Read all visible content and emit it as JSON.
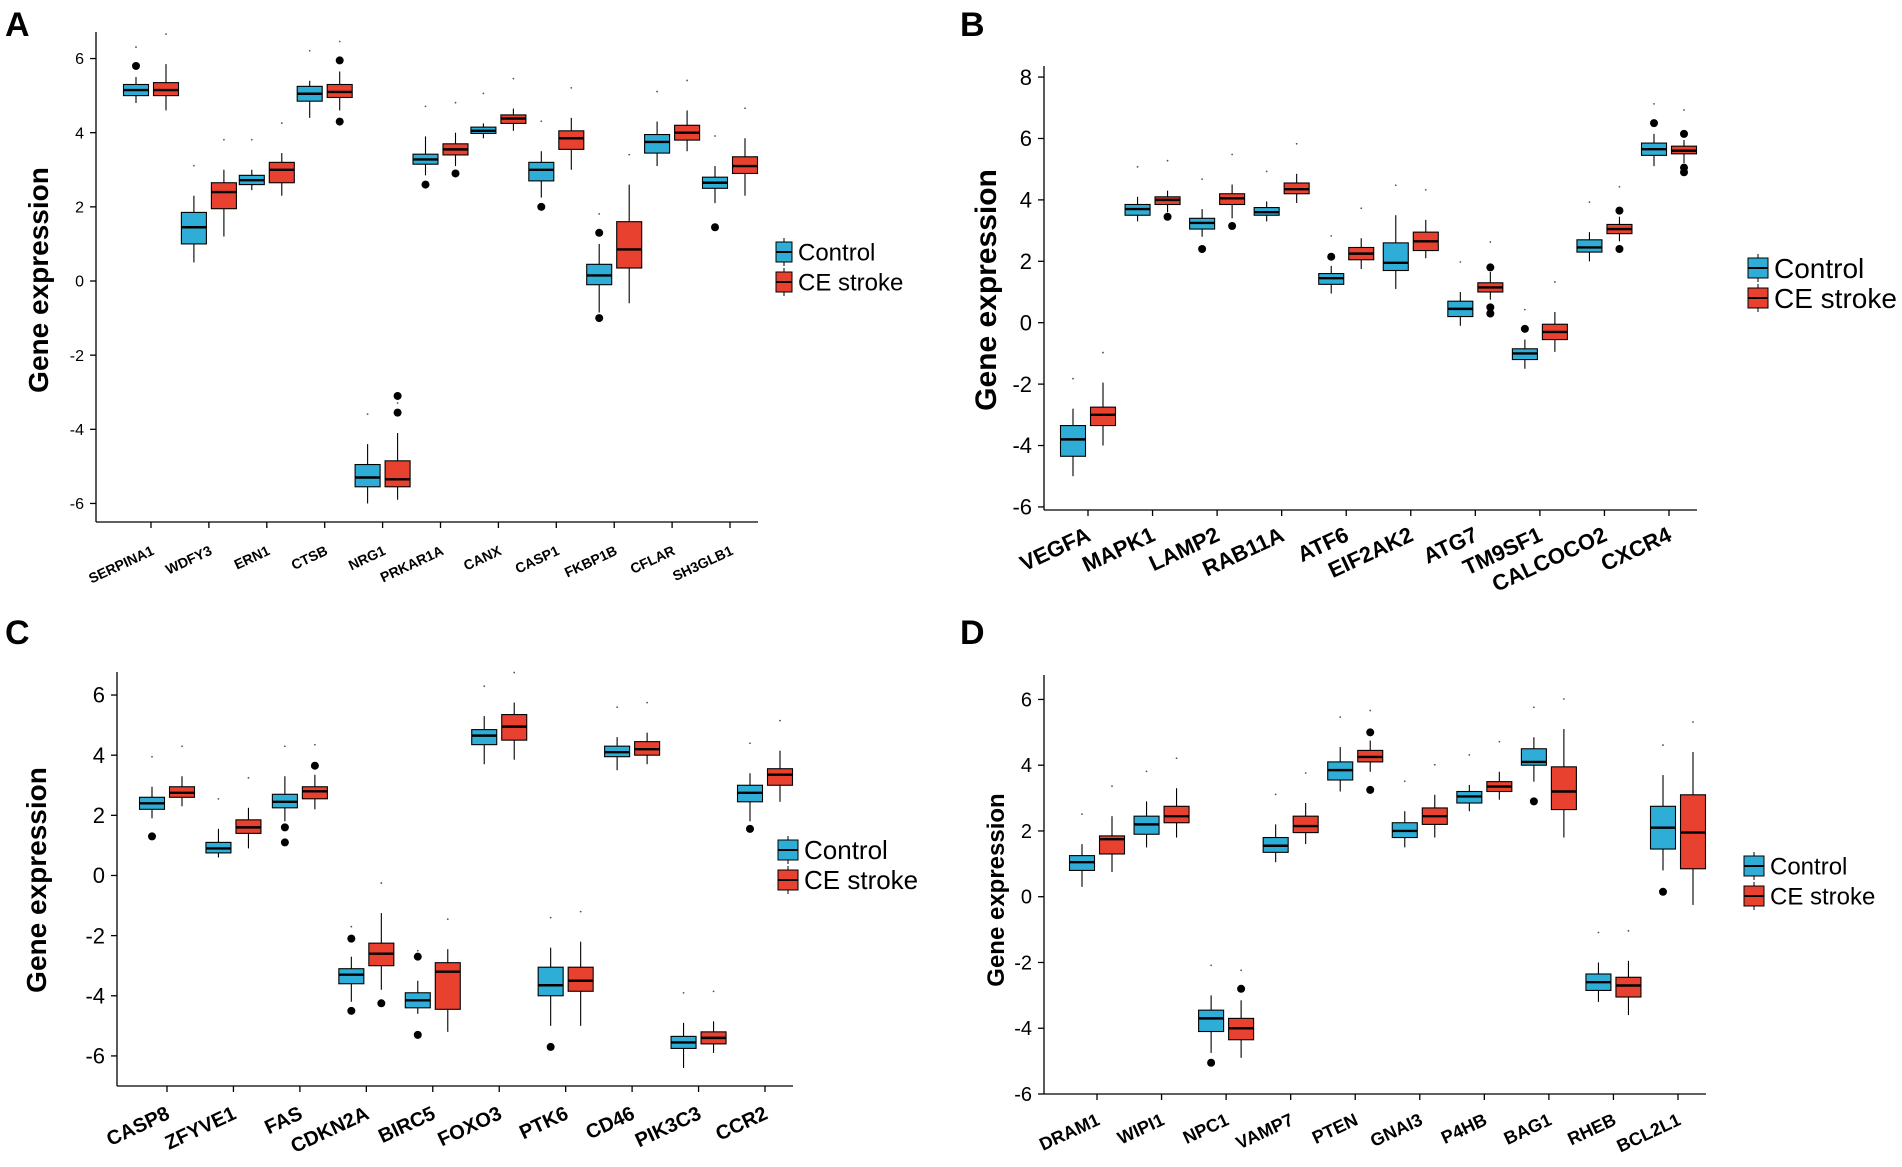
{
  "colors": {
    "control": "#2eaed6",
    "stroke": "#e8412f",
    "line": "#000000"
  },
  "legend": {
    "control_label": "Control",
    "stroke_label": "CE stroke"
  },
  "chart_data": [
    {
      "panel": "A",
      "type": "box",
      "ylabel": "Gene expression",
      "ylim": [
        -6.5,
        6.5
      ],
      "yticks": [
        6,
        4,
        2,
        0,
        -2,
        -4,
        -6
      ],
      "categories": [
        "SERPINA1",
        "WDFY3",
        "ERN1",
        "CTSB",
        "NRG1",
        "PRKAR1A",
        "CANX",
        "CASP1",
        "FKBP1B",
        "CFLAR",
        "SH3GLB1"
      ],
      "series": [
        {
          "name": "Control",
          "boxes": [
            {
              "min": 4.8,
              "q1": 5.0,
              "median": 5.15,
              "q3": 5.3,
              "max": 5.5,
              "outliers": [
                5.8
              ]
            },
            {
              "min": 0.5,
              "q1": 1.0,
              "median": 1.45,
              "q3": 1.85,
              "max": 2.3,
              "outliers": []
            },
            {
              "min": 2.45,
              "q1": 2.6,
              "median": 2.72,
              "q3": 2.85,
              "max": 3.0,
              "outliers": []
            },
            {
              "min": 4.4,
              "q1": 4.85,
              "median": 5.05,
              "q3": 5.25,
              "max": 5.4,
              "outliers": []
            },
            {
              "min": -6.0,
              "q1": -5.55,
              "median": -5.3,
              "q3": -4.95,
              "max": -4.4,
              "outliers": []
            },
            {
              "min": 2.85,
              "q1": 3.15,
              "median": 3.28,
              "q3": 3.42,
              "max": 3.9,
              "outliers": [
                2.6
              ]
            },
            {
              "min": 3.85,
              "q1": 3.98,
              "median": 4.05,
              "q3": 4.15,
              "max": 4.25,
              "outliers": []
            },
            {
              "min": 2.25,
              "q1": 2.7,
              "median": 3.0,
              "q3": 3.2,
              "max": 3.5,
              "outliers": [
                2.0
              ]
            },
            {
              "min": -0.85,
              "q1": -0.1,
              "median": 0.15,
              "q3": 0.45,
              "max": 1.0,
              "outliers": [
                1.3,
                -1.0
              ]
            },
            {
              "min": 3.1,
              "q1": 3.45,
              "median": 3.75,
              "q3": 3.95,
              "max": 4.3,
              "outliers": []
            },
            {
              "min": 2.1,
              "q1": 2.5,
              "median": 2.65,
              "q3": 2.8,
              "max": 3.1,
              "outliers": [
                1.45
              ]
            }
          ]
        },
        {
          "name": "CE stroke",
          "boxes": [
            {
              "min": 4.6,
              "q1": 5.0,
              "median": 5.15,
              "q3": 5.35,
              "max": 5.85,
              "outliers": []
            },
            {
              "min": 1.2,
              "q1": 1.95,
              "median": 2.4,
              "q3": 2.65,
              "max": 3.0,
              "outliers": []
            },
            {
              "min": 2.3,
              "q1": 2.65,
              "median": 3.0,
              "q3": 3.2,
              "max": 3.45,
              "outliers": []
            },
            {
              "min": 4.6,
              "q1": 4.95,
              "median": 5.1,
              "q3": 5.3,
              "max": 5.65,
              "outliers": [
                5.95,
                4.3
              ]
            },
            {
              "min": -5.9,
              "q1": -5.55,
              "median": -5.35,
              "q3": -4.85,
              "max": -4.1,
              "outliers": [
                -3.1,
                -3.55
              ]
            },
            {
              "min": 3.1,
              "q1": 3.4,
              "median": 3.55,
              "q3": 3.7,
              "max": 4.0,
              "outliers": [
                2.9
              ]
            },
            {
              "min": 4.05,
              "q1": 4.25,
              "median": 4.38,
              "q3": 4.48,
              "max": 4.65,
              "outliers": []
            },
            {
              "min": 3.0,
              "q1": 3.55,
              "median": 3.85,
              "q3": 4.05,
              "max": 4.4,
              "outliers": []
            },
            {
              "min": -0.6,
              "q1": 0.35,
              "median": 0.85,
              "q3": 1.6,
              "max": 2.6,
              "outliers": []
            },
            {
              "min": 3.5,
              "q1": 3.8,
              "median": 4.0,
              "q3": 4.2,
              "max": 4.6,
              "outliers": []
            },
            {
              "min": 2.3,
              "q1": 2.9,
              "median": 3.1,
              "q3": 3.35,
              "max": 3.85,
              "outliers": []
            }
          ]
        }
      ]
    },
    {
      "panel": "B",
      "type": "box",
      "ylabel": "Gene expression",
      "ylim": [
        -6.1,
        8.1
      ],
      "yticks": [
        8,
        6,
        4,
        2,
        0,
        -2,
        -4,
        -6
      ],
      "categories": [
        "VEGFA",
        "MAPK1",
        "LAMP2",
        "RAB11A",
        "ATF6",
        "EIF2AK2",
        "ATG7",
        "TM9SF1",
        "CALCOCO2",
        "CXCR4"
      ],
      "series": [
        {
          "name": "Control",
          "boxes": [
            {
              "min": -5.0,
              "q1": -4.35,
              "median": -3.8,
              "q3": -3.35,
              "max": -2.8,
              "outliers": []
            },
            {
              "min": 3.3,
              "q1": 3.5,
              "median": 3.7,
              "q3": 3.85,
              "max": 4.1,
              "outliers": []
            },
            {
              "min": 2.8,
              "q1": 3.05,
              "median": 3.25,
              "q3": 3.4,
              "max": 3.7,
              "outliers": [
                2.4
              ]
            },
            {
              "min": 3.3,
              "q1": 3.5,
              "median": 3.6,
              "q3": 3.75,
              "max": 3.95,
              "outliers": []
            },
            {
              "min": 0.95,
              "q1": 1.25,
              "median": 1.45,
              "q3": 1.6,
              "max": 1.85,
              "outliers": [
                2.15
              ]
            },
            {
              "min": 1.1,
              "q1": 1.7,
              "median": 1.95,
              "q3": 2.6,
              "max": 3.5,
              "outliers": []
            },
            {
              "min": -0.1,
              "q1": 0.2,
              "median": 0.45,
              "q3": 0.7,
              "max": 1.0,
              "outliers": []
            },
            {
              "min": -1.5,
              "q1": -1.2,
              "median": -1.0,
              "q3": -0.85,
              "max": -0.55,
              "outliers": [
                -0.2
              ]
            },
            {
              "min": 2.0,
              "q1": 2.3,
              "median": 2.45,
              "q3": 2.7,
              "max": 2.95,
              "outliers": []
            },
            {
              "min": 5.1,
              "q1": 5.45,
              "median": 5.65,
              "q3": 5.85,
              "max": 6.15,
              "outliers": [
                6.5
              ]
            }
          ]
        },
        {
          "name": "CE stroke",
          "boxes": [
            {
              "min": -4.0,
              "q1": -3.35,
              "median": -3.0,
              "q3": -2.75,
              "max": -1.95,
              "outliers": []
            },
            {
              "min": 3.6,
              "q1": 3.85,
              "median": 4.0,
              "q3": 4.1,
              "max": 4.3,
              "outliers": [
                3.45
              ]
            },
            {
              "min": 3.4,
              "q1": 3.85,
              "median": 4.05,
              "q3": 4.2,
              "max": 4.5,
              "outliers": [
                3.15
              ]
            },
            {
              "min": 3.9,
              "q1": 4.2,
              "median": 4.35,
              "q3": 4.55,
              "max": 4.85,
              "outliers": []
            },
            {
              "min": 1.75,
              "q1": 2.05,
              "median": 2.25,
              "q3": 2.45,
              "max": 2.75,
              "outliers": []
            },
            {
              "min": 2.1,
              "q1": 2.35,
              "median": 2.65,
              "q3": 2.95,
              "max": 3.35,
              "outliers": []
            },
            {
              "min": 0.75,
              "q1": 1.0,
              "median": 1.15,
              "q3": 1.3,
              "max": 1.65,
              "outliers": [
                1.8,
                0.5,
                0.3
              ]
            },
            {
              "min": -0.95,
              "q1": -0.55,
              "median": -0.3,
              "q3": -0.05,
              "max": 0.35,
              "outliers": []
            },
            {
              "min": 2.65,
              "q1": 2.9,
              "median": 3.05,
              "q3": 3.2,
              "max": 3.45,
              "outliers": [
                3.65,
                2.4
              ]
            },
            {
              "min": 5.2,
              "q1": 5.5,
              "median": 5.6,
              "q3": 5.75,
              "max": 5.95,
              "outliers": [
                6.15,
                5.05,
                4.9
              ]
            }
          ]
        }
      ]
    },
    {
      "panel": "C",
      "type": "box",
      "ylabel": "Gene expression",
      "ylim": [
        -7.0,
        6.5
      ],
      "yticks": [
        6,
        4,
        2,
        0,
        -2,
        -4,
        -6
      ],
      "categories": [
        "CASP8",
        "ZFYVE1",
        "FAS",
        "CDKN2A",
        "BIRC5",
        "FOXO3",
        "PTK6",
        "CD46",
        "PIK3C3",
        "CCR2"
      ],
      "series": [
        {
          "name": "Control",
          "boxes": [
            {
              "min": 1.9,
              "q1": 2.2,
              "median": 2.4,
              "q3": 2.6,
              "max": 2.95,
              "outliers": [
                1.3
              ]
            },
            {
              "min": 0.6,
              "q1": 0.75,
              "median": 0.9,
              "q3": 1.1,
              "max": 1.55,
              "outliers": []
            },
            {
              "min": 1.8,
              "q1": 2.25,
              "median": 2.45,
              "q3": 2.7,
              "max": 3.3,
              "outliers": [
                1.6,
                1.1
              ]
            },
            {
              "min": -4.2,
              "q1": -3.6,
              "median": -3.3,
              "q3": -3.1,
              "max": -2.7,
              "outliers": [
                -2.1,
                -4.5
              ]
            },
            {
              "min": -4.6,
              "q1": -4.4,
              "median": -4.15,
              "q3": -3.9,
              "max": -3.5,
              "outliers": [
                -2.7,
                -5.3
              ]
            },
            {
              "min": 3.7,
              "q1": 4.35,
              "median": 4.65,
              "q3": 4.85,
              "max": 5.3,
              "outliers": []
            },
            {
              "min": -5.0,
              "q1": -4.0,
              "median": -3.65,
              "q3": -3.05,
              "max": -2.4,
              "outliers": [
                -5.7
              ]
            },
            {
              "min": 3.5,
              "q1": 3.95,
              "median": 4.1,
              "q3": 4.3,
              "max": 4.6,
              "outliers": []
            },
            {
              "min": -6.4,
              "q1": -5.75,
              "median": -5.55,
              "q3": -5.35,
              "max": -4.9,
              "outliers": []
            },
            {
              "min": 1.8,
              "q1": 2.45,
              "median": 2.75,
              "q3": 3.0,
              "max": 3.4,
              "outliers": [
                1.55
              ]
            }
          ]
        },
        {
          "name": "CE stroke",
          "boxes": [
            {
              "min": 2.3,
              "q1": 2.6,
              "median": 2.75,
              "q3": 2.95,
              "max": 3.3,
              "outliers": []
            },
            {
              "min": 0.9,
              "q1": 1.4,
              "median": 1.6,
              "q3": 1.85,
              "max": 2.25,
              "outliers": []
            },
            {
              "min": 2.2,
              "q1": 2.55,
              "median": 2.8,
              "q3": 2.95,
              "max": 3.35,
              "outliers": [
                3.65
              ]
            },
            {
              "min": -3.8,
              "q1": -3.0,
              "median": -2.6,
              "q3": -2.25,
              "max": -1.25,
              "outliers": [
                -4.25
              ]
            },
            {
              "min": -5.2,
              "q1": -4.45,
              "median": -3.2,
              "q3": -2.9,
              "max": -2.45,
              "outliers": []
            },
            {
              "min": 3.85,
              "q1": 4.5,
              "median": 4.95,
              "q3": 5.35,
              "max": 5.75,
              "outliers": []
            },
            {
              "min": -5.0,
              "q1": -3.85,
              "median": -3.5,
              "q3": -3.05,
              "max": -2.2,
              "outliers": []
            },
            {
              "min": 3.7,
              "q1": 4.0,
              "median": 4.2,
              "q3": 4.45,
              "max": 4.75,
              "outliers": []
            },
            {
              "min": -5.9,
              "q1": -5.6,
              "median": -5.4,
              "q3": -5.2,
              "max": -4.85,
              "outliers": []
            },
            {
              "min": 2.45,
              "q1": 3.0,
              "median": 3.35,
              "q3": 3.55,
              "max": 4.15,
              "outliers": []
            }
          ]
        }
      ]
    },
    {
      "panel": "D",
      "type": "box",
      "ylabel": "Gene expression",
      "ylim": [
        -6.0,
        6.5
      ],
      "yticks": [
        6,
        4,
        2,
        0,
        -2,
        -4,
        -6
      ],
      "categories": [
        "DRAM1",
        "WIPI1",
        "NPC1",
        "VAMP7",
        "PTEN",
        "GNAI3",
        "P4HB",
        "BAG1",
        "RHEB",
        "BCL2L1"
      ],
      "series": [
        {
          "name": "Control",
          "boxes": [
            {
              "min": 0.3,
              "q1": 0.8,
              "median": 1.05,
              "q3": 1.25,
              "max": 1.6,
              "outliers": []
            },
            {
              "min": 1.5,
              "q1": 1.9,
              "median": 2.2,
              "q3": 2.45,
              "max": 2.9,
              "outliers": []
            },
            {
              "min": -4.75,
              "q1": -4.1,
              "median": -3.7,
              "q3": -3.45,
              "max": -3.0,
              "outliers": [
                -5.05
              ]
            },
            {
              "min": 1.05,
              "q1": 1.35,
              "median": 1.55,
              "q3": 1.8,
              "max": 2.2,
              "outliers": []
            },
            {
              "min": 3.2,
              "q1": 3.55,
              "median": 3.85,
              "q3": 4.1,
              "max": 4.55,
              "outliers": []
            },
            {
              "min": 1.5,
              "q1": 1.8,
              "median": 2.0,
              "q3": 2.25,
              "max": 2.6,
              "outliers": []
            },
            {
              "min": 2.6,
              "q1": 2.85,
              "median": 3.05,
              "q3": 3.2,
              "max": 3.4,
              "outliers": []
            },
            {
              "min": 3.5,
              "q1": 4.0,
              "median": 4.1,
              "q3": 4.5,
              "max": 4.85,
              "outliers": [
                2.9
              ]
            },
            {
              "min": -3.2,
              "q1": -2.85,
              "median": -2.6,
              "q3": -2.35,
              "max": -2.0,
              "outliers": []
            },
            {
              "min": 0.8,
              "q1": 1.45,
              "median": 2.1,
              "q3": 2.75,
              "max": 3.7,
              "outliers": [
                0.15
              ]
            }
          ]
        },
        {
          "name": "CE stroke",
          "boxes": [
            {
              "min": 0.75,
              "q1": 1.3,
              "median": 1.75,
              "q3": 1.85,
              "max": 2.45,
              "outliers": []
            },
            {
              "min": 1.8,
              "q1": 2.25,
              "median": 2.45,
              "q3": 2.75,
              "max": 3.3,
              "outliers": []
            },
            {
              "min": -4.9,
              "q1": -4.35,
              "median": -4.0,
              "q3": -3.7,
              "max": -3.15,
              "outliers": [
                -2.8
              ]
            },
            {
              "min": 1.6,
              "q1": 1.95,
              "median": 2.15,
              "q3": 2.45,
              "max": 2.85,
              "outliers": []
            },
            {
              "min": 3.8,
              "q1": 4.1,
              "median": 4.25,
              "q3": 4.45,
              "max": 4.75,
              "outliers": [
                5.0,
                3.25
              ]
            },
            {
              "min": 1.8,
              "q1": 2.2,
              "median": 2.45,
              "q3": 2.7,
              "max": 3.1,
              "outliers": []
            },
            {
              "min": 2.95,
              "q1": 3.2,
              "median": 3.35,
              "q3": 3.5,
              "max": 3.8,
              "outliers": []
            },
            {
              "min": 1.8,
              "q1": 2.65,
              "median": 3.2,
              "q3": 3.95,
              "max": 5.1,
              "outliers": []
            },
            {
              "min": -3.6,
              "q1": -3.05,
              "median": -2.7,
              "q3": -2.45,
              "max": -1.95,
              "outliers": []
            },
            {
              "min": -0.25,
              "q1": 0.85,
              "median": 1.95,
              "q3": 3.1,
              "max": 4.4,
              "outliers": []
            }
          ]
        }
      ]
    }
  ]
}
